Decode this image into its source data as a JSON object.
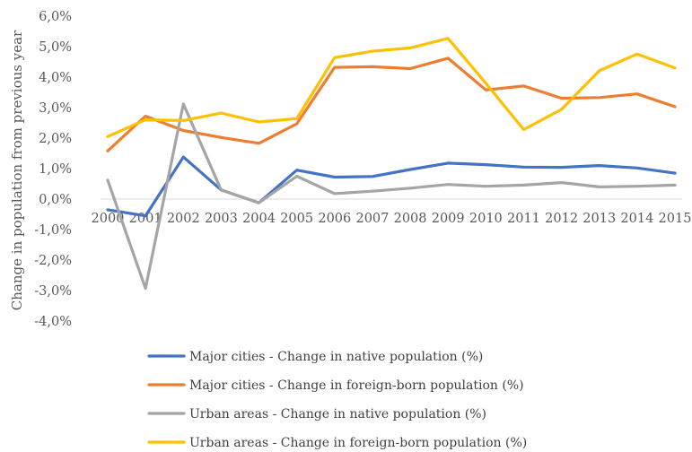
{
  "chart_data": {
    "type": "line",
    "title": "",
    "xlabel": "",
    "ylabel": "Change in population from previous year",
    "ylim": [
      -4,
      6
    ],
    "yticks": [
      6,
      5,
      4,
      3,
      2,
      1,
      0,
      -1,
      -2,
      -3,
      -4
    ],
    "ytick_labels": [
      "6,0%",
      "5,0%",
      "4,0%",
      "3,0%",
      "2,0%",
      "1,0%",
      "0,0%",
      "-1,0%",
      "-2,0%",
      "-3,0%",
      "-4,0%"
    ],
    "categories": [
      "2000",
      "2001",
      "2002",
      "2003",
      "2004",
      "2005",
      "2006",
      "2007",
      "2008",
      "2009",
      "2010",
      "2011",
      "2012",
      "2013",
      "2014",
      "2015"
    ],
    "grid": false,
    "legend_position": "bottom",
    "series": [
      {
        "name": "Major cities - Change in native population (%)",
        "color": "#4472C4",
        "values": [
          -0.35,
          -0.55,
          1.38,
          0.3,
          -0.12,
          0.95,
          0.72,
          0.74,
          0.97,
          1.18,
          1.13,
          1.05,
          1.04,
          1.1,
          1.02,
          0.85
        ]
      },
      {
        "name": "Major cities - Change in foreign-born population (%)",
        "color": "#ED7D31",
        "values": [
          1.58,
          2.72,
          2.25,
          2.02,
          1.83,
          2.47,
          4.32,
          4.34,
          4.28,
          4.62,
          3.58,
          3.71,
          3.31,
          3.33,
          3.45,
          3.03
        ]
      },
      {
        "name": "Urban areas - Change in native population (%)",
        "color": "#A5A5A5",
        "values": [
          0.62,
          -2.93,
          3.12,
          0.3,
          -0.12,
          0.75,
          0.18,
          0.26,
          0.36,
          0.48,
          0.42,
          0.46,
          0.54,
          0.4,
          0.42,
          0.46
        ]
      },
      {
        "name": "Urban areas - Change in foreign-born population (%)",
        "color": "#FFC000",
        "values": [
          2.05,
          2.6,
          2.58,
          2.82,
          2.53,
          2.64,
          4.64,
          4.85,
          4.96,
          5.27,
          3.8,
          2.28,
          2.94,
          4.21,
          4.76,
          4.3
        ]
      }
    ]
  }
}
